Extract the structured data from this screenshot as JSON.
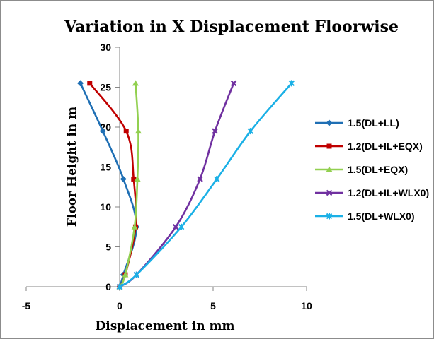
{
  "chart_data": {
    "type": "line",
    "title": "Variation in X Displacement Floorwise",
    "xlabel": "Displacement in mm",
    "ylabel": "Floor Height in m",
    "xlim": [
      -5,
      10
    ],
    "ylim": [
      0,
      30
    ],
    "xticks": [
      -5,
      0,
      5,
      10
    ],
    "yticks": [
      0,
      5,
      10,
      15,
      20,
      25,
      30
    ],
    "grid": false,
    "legend_position": "right",
    "series": [
      {
        "name": "1.5(DL+LL)",
        "color": "#1f6fb4",
        "marker": "diamond",
        "points": [
          [
            0,
            0
          ],
          [
            0.2,
            1.5
          ],
          [
            0.9,
            7.5
          ],
          [
            0.2,
            13.5
          ],
          [
            -0.9,
            19.5
          ],
          [
            -2.1,
            25.5
          ]
        ]
      },
      {
        "name": "1.2(DL+IL+EQX)",
        "color": "#c00000",
        "marker": "square",
        "points": [
          [
            0,
            0
          ],
          [
            0.3,
            1.5
          ],
          [
            0.85,
            7.5
          ],
          [
            0.75,
            13.5
          ],
          [
            0.35,
            19.5
          ],
          [
            -1.6,
            25.5
          ]
        ]
      },
      {
        "name": "1.5(DL+EQX)",
        "color": "#92d050",
        "marker": "triangle",
        "points": [
          [
            0,
            0
          ],
          [
            0.3,
            1.5
          ],
          [
            0.8,
            7.5
          ],
          [
            0.95,
            13.5
          ],
          [
            1.0,
            19.5
          ],
          [
            0.85,
            25.5
          ]
        ]
      },
      {
        "name": "1.2(DL+IL+WLX0)",
        "color": "#7030a0",
        "marker": "x",
        "points": [
          [
            0,
            0
          ],
          [
            0.9,
            1.5
          ],
          [
            3.0,
            7.5
          ],
          [
            4.3,
            13.5
          ],
          [
            5.1,
            19.5
          ],
          [
            6.1,
            25.5
          ]
        ]
      },
      {
        "name": "1.5(DL+WLX0)",
        "color": "#1ab0e6",
        "marker": "star",
        "points": [
          [
            0,
            0
          ],
          [
            0.9,
            1.5
          ],
          [
            3.3,
            7.5
          ],
          [
            5.2,
            13.5
          ],
          [
            7.0,
            19.5
          ],
          [
            9.2,
            25.5
          ]
        ]
      }
    ]
  }
}
